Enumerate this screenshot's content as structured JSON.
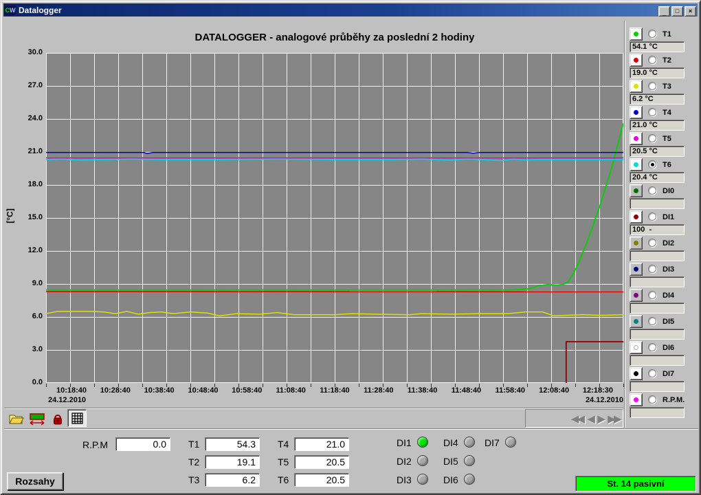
{
  "window": {
    "title": "Datalogger",
    "icon_text_c": "C",
    "icon_text_w": "W",
    "controls": [
      {
        "name": "minimize",
        "glyph": "_"
      },
      {
        "name": "maximize",
        "glyph": "□"
      },
      {
        "name": "close",
        "glyph": "×"
      }
    ]
  },
  "chart": {
    "title": "DATALOGGER - analogové průběhy za poslední 2 hodiny",
    "y_axis": {
      "unit": "[°C]",
      "ticks": [
        "30.0",
        "27.0",
        "24.0",
        "21.0",
        "18.0",
        "15.0",
        "12.0",
        "9.0",
        "6.0",
        "3.0",
        "0.0"
      ]
    },
    "x_axis": {
      "ticks": [
        "10:18:40",
        "10:28:40",
        "10:38:40",
        "10:48:40",
        "10:58:40",
        "11:08:40",
        "11:18:40",
        "11:28:40",
        "11:38:40",
        "11:48:40",
        "11:58:40",
        "12:08:40",
        "12:18:30"
      ],
      "date_left": "24.12.2010",
      "date_right": "24.12.2010"
    },
    "plot_bg": "#868686",
    "grid_color": "#f2f2f2"
  },
  "chart_data": {
    "type": "line",
    "x_range": [
      "10:18:40",
      "12:18:30"
    ],
    "ylim": [
      0,
      30
    ],
    "ylabel": "[°C]",
    "title": "DATALOGGER - analogové průběhy za poslední 2 hodiny",
    "note": "points are [x_fraction_of_timespan, value_on_0-30_axis]; DI1 is a digital channel (raw value 100) plotted scaled",
    "series": [
      {
        "name": "T2",
        "color": "#dc0000",
        "width": 1.5,
        "points": [
          [
            0,
            8.3
          ],
          [
            1,
            8.28
          ]
        ]
      },
      {
        "name": "T1",
        "color": "#00d200",
        "width": 1.8,
        "points": [
          [
            0,
            8.45
          ],
          [
            0.6,
            8.45
          ],
          [
            0.8,
            8.45
          ],
          [
            0.835,
            8.55
          ],
          [
            0.855,
            8.85
          ],
          [
            0.87,
            8.95
          ],
          [
            0.885,
            8.9
          ],
          [
            0.895,
            8.95
          ],
          [
            0.905,
            9.2
          ],
          [
            0.92,
            10.6
          ],
          [
            0.94,
            13.2
          ],
          [
            0.96,
            16.2
          ],
          [
            0.98,
            19.6
          ],
          [
            1,
            23.6
          ]
        ]
      },
      {
        "name": "T3",
        "color": "#e0e000",
        "width": 1.5,
        "points": [
          [
            0,
            6.3
          ],
          [
            0.02,
            6.5
          ],
          [
            0.08,
            6.5
          ],
          [
            0.1,
            6.45
          ],
          [
            0.12,
            6.3
          ],
          [
            0.14,
            6.5
          ],
          [
            0.16,
            6.25
          ],
          [
            0.18,
            6.4
          ],
          [
            0.2,
            6.45
          ],
          [
            0.22,
            6.3
          ],
          [
            0.25,
            6.45
          ],
          [
            0.28,
            6.35
          ],
          [
            0.3,
            6.1
          ],
          [
            0.33,
            6.3
          ],
          [
            0.37,
            6.25
          ],
          [
            0.4,
            6.4
          ],
          [
            0.43,
            6.2
          ],
          [
            0.5,
            6.2
          ],
          [
            0.53,
            6.3
          ],
          [
            0.57,
            6.25
          ],
          [
            0.63,
            6.2
          ],
          [
            0.65,
            6.3
          ],
          [
            0.7,
            6.25
          ],
          [
            0.75,
            6.3
          ],
          [
            0.8,
            6.3
          ],
          [
            0.83,
            6.45
          ],
          [
            0.86,
            6.45
          ],
          [
            0.88,
            6.1
          ],
          [
            0.9,
            6.15
          ],
          [
            0.93,
            6.2
          ],
          [
            0.96,
            6.15
          ],
          [
            1,
            6.2
          ]
        ]
      },
      {
        "name": "T5",
        "color": "#e000e0",
        "width": 1.5,
        "points": [
          [
            0,
            20.45
          ],
          [
            1,
            20.45
          ]
        ]
      },
      {
        "name": "T6",
        "color": "#00dcdc",
        "width": 1.5,
        "points": [
          [
            0,
            20.3
          ],
          [
            0.03,
            20.35
          ],
          [
            0.06,
            20.25
          ],
          [
            0.1,
            20.3
          ],
          [
            0.15,
            20.35
          ],
          [
            0.2,
            20.3
          ],
          [
            0.3,
            20.3
          ],
          [
            0.4,
            20.35
          ],
          [
            0.5,
            20.3
          ],
          [
            0.6,
            20.3
          ],
          [
            0.65,
            20.35
          ],
          [
            0.7,
            20.25
          ],
          [
            0.73,
            20.35
          ],
          [
            0.76,
            20.3
          ],
          [
            0.79,
            20.2
          ],
          [
            0.81,
            20.35
          ],
          [
            0.83,
            20.25
          ],
          [
            0.85,
            20.3
          ],
          [
            0.9,
            20.3
          ],
          [
            1,
            20.3
          ]
        ]
      },
      {
        "name": "T4",
        "color": "#0000c8",
        "width": 1.5,
        "points": [
          [
            0,
            20.95
          ],
          [
            0.17,
            20.95
          ],
          [
            0.175,
            20.85
          ],
          [
            0.185,
            20.95
          ],
          [
            0.55,
            20.95
          ],
          [
            0.73,
            20.95
          ],
          [
            0.74,
            20.88
          ],
          [
            0.75,
            20.95
          ],
          [
            1,
            20.95
          ]
        ]
      },
      {
        "name": "DI1",
        "color": "#900000",
        "width": 1.8,
        "points": [
          [
            0.901,
            0
          ],
          [
            0.901,
            3.75
          ],
          [
            1,
            3.75
          ]
        ]
      }
    ]
  },
  "toolbar": {
    "icons": [
      {
        "name": "open-folder"
      },
      {
        "name": "range-tool"
      },
      {
        "name": "lock"
      },
      {
        "name": "grid",
        "pressed": true
      }
    ]
  },
  "nav": {
    "arrows": [
      {
        "name": "first",
        "glyph": "◀◀"
      },
      {
        "name": "prev",
        "glyph": "◀"
      },
      {
        "name": "next",
        "glyph": "▶"
      },
      {
        "name": "last",
        "glyph": "▶▶"
      }
    ]
  },
  "sidebar": {
    "channels": [
      {
        "id": "T1",
        "color": "#00d200",
        "value": "54.1 °C",
        "btn_bg": "#ffffff",
        "selected": false
      },
      {
        "id": "T2",
        "color": "#dc0000",
        "value": "19.0 °C",
        "btn_bg": "#ffffff",
        "selected": false
      },
      {
        "id": "T3",
        "color": "#e0e000",
        "value": "6.2 °C",
        "btn_bg": "#ffffff",
        "selected": false
      },
      {
        "id": "T4",
        "color": "#0000e0",
        "value": "21.0 °C",
        "btn_bg": "#ffffff",
        "selected": false
      },
      {
        "id": "T5",
        "color": "#e000e0",
        "value": "20.5 °C",
        "btn_bg": "#ffffff",
        "selected": false
      },
      {
        "id": "T6",
        "color": "#00dcdc",
        "value": "20.4 °C",
        "btn_bg": "#ffffff",
        "selected": true
      },
      {
        "id": "DI0",
        "color": "#007000",
        "value": "",
        "btn_bg": "#c0c0c0",
        "selected": false
      },
      {
        "id": "DI1",
        "color": "#900000",
        "value": "100  -",
        "btn_bg": "#ffffff",
        "selected": false
      },
      {
        "id": "DI2",
        "color": "#808000",
        "value": "",
        "btn_bg": "#c0c0c0",
        "selected": false
      },
      {
        "id": "DI3",
        "color": "#000080",
        "value": "",
        "btn_bg": "#c0c0c0",
        "selected": false
      },
      {
        "id": "DI4",
        "color": "#800080",
        "value": "",
        "btn_bg": "#c0c0c0",
        "selected": false
      },
      {
        "id": "DI5",
        "color": "#008080",
        "value": "",
        "btn_bg": "#c0c0c0",
        "selected": false
      },
      {
        "id": "DI6",
        "color": "#ffffff",
        "value": "",
        "btn_bg": "#ffffff",
        "selected": false
      },
      {
        "id": "DI7",
        "color": "#000000",
        "value": "",
        "btn_bg": "#ffffff",
        "selected": false
      },
      {
        "id": "R.P.M.",
        "color": "#ff00ff",
        "value": "",
        "btn_bg": "#ffffff",
        "selected": false
      }
    ]
  },
  "panel": {
    "rpm_label": "R.P.M",
    "rpm_value": "0.0",
    "temps": [
      {
        "label": "T1",
        "value": "54.3"
      },
      {
        "label": "T2",
        "value": "19.1"
      },
      {
        "label": "T3",
        "value": "6.2"
      },
      {
        "label": "T4",
        "value": "21.0"
      },
      {
        "label": "T5",
        "value": "20.5"
      },
      {
        "label": "T6",
        "value": "20.5"
      }
    ],
    "di": [
      {
        "label": "DI1",
        "on": true
      },
      {
        "label": "DI2",
        "on": false
      },
      {
        "label": "DI3",
        "on": false
      },
      {
        "label": "DI4",
        "on": false
      },
      {
        "label": "DI5",
        "on": false
      },
      {
        "label": "DI6",
        "on": false
      },
      {
        "label": "DI7",
        "on": false
      }
    ],
    "led_on_color": "#00e800",
    "led_off_color": "#a8a8a8"
  },
  "footer": {
    "ranges_button": "Rozsahy",
    "status_text": "St. 14 pasivní",
    "status_color": "#00ff00"
  }
}
